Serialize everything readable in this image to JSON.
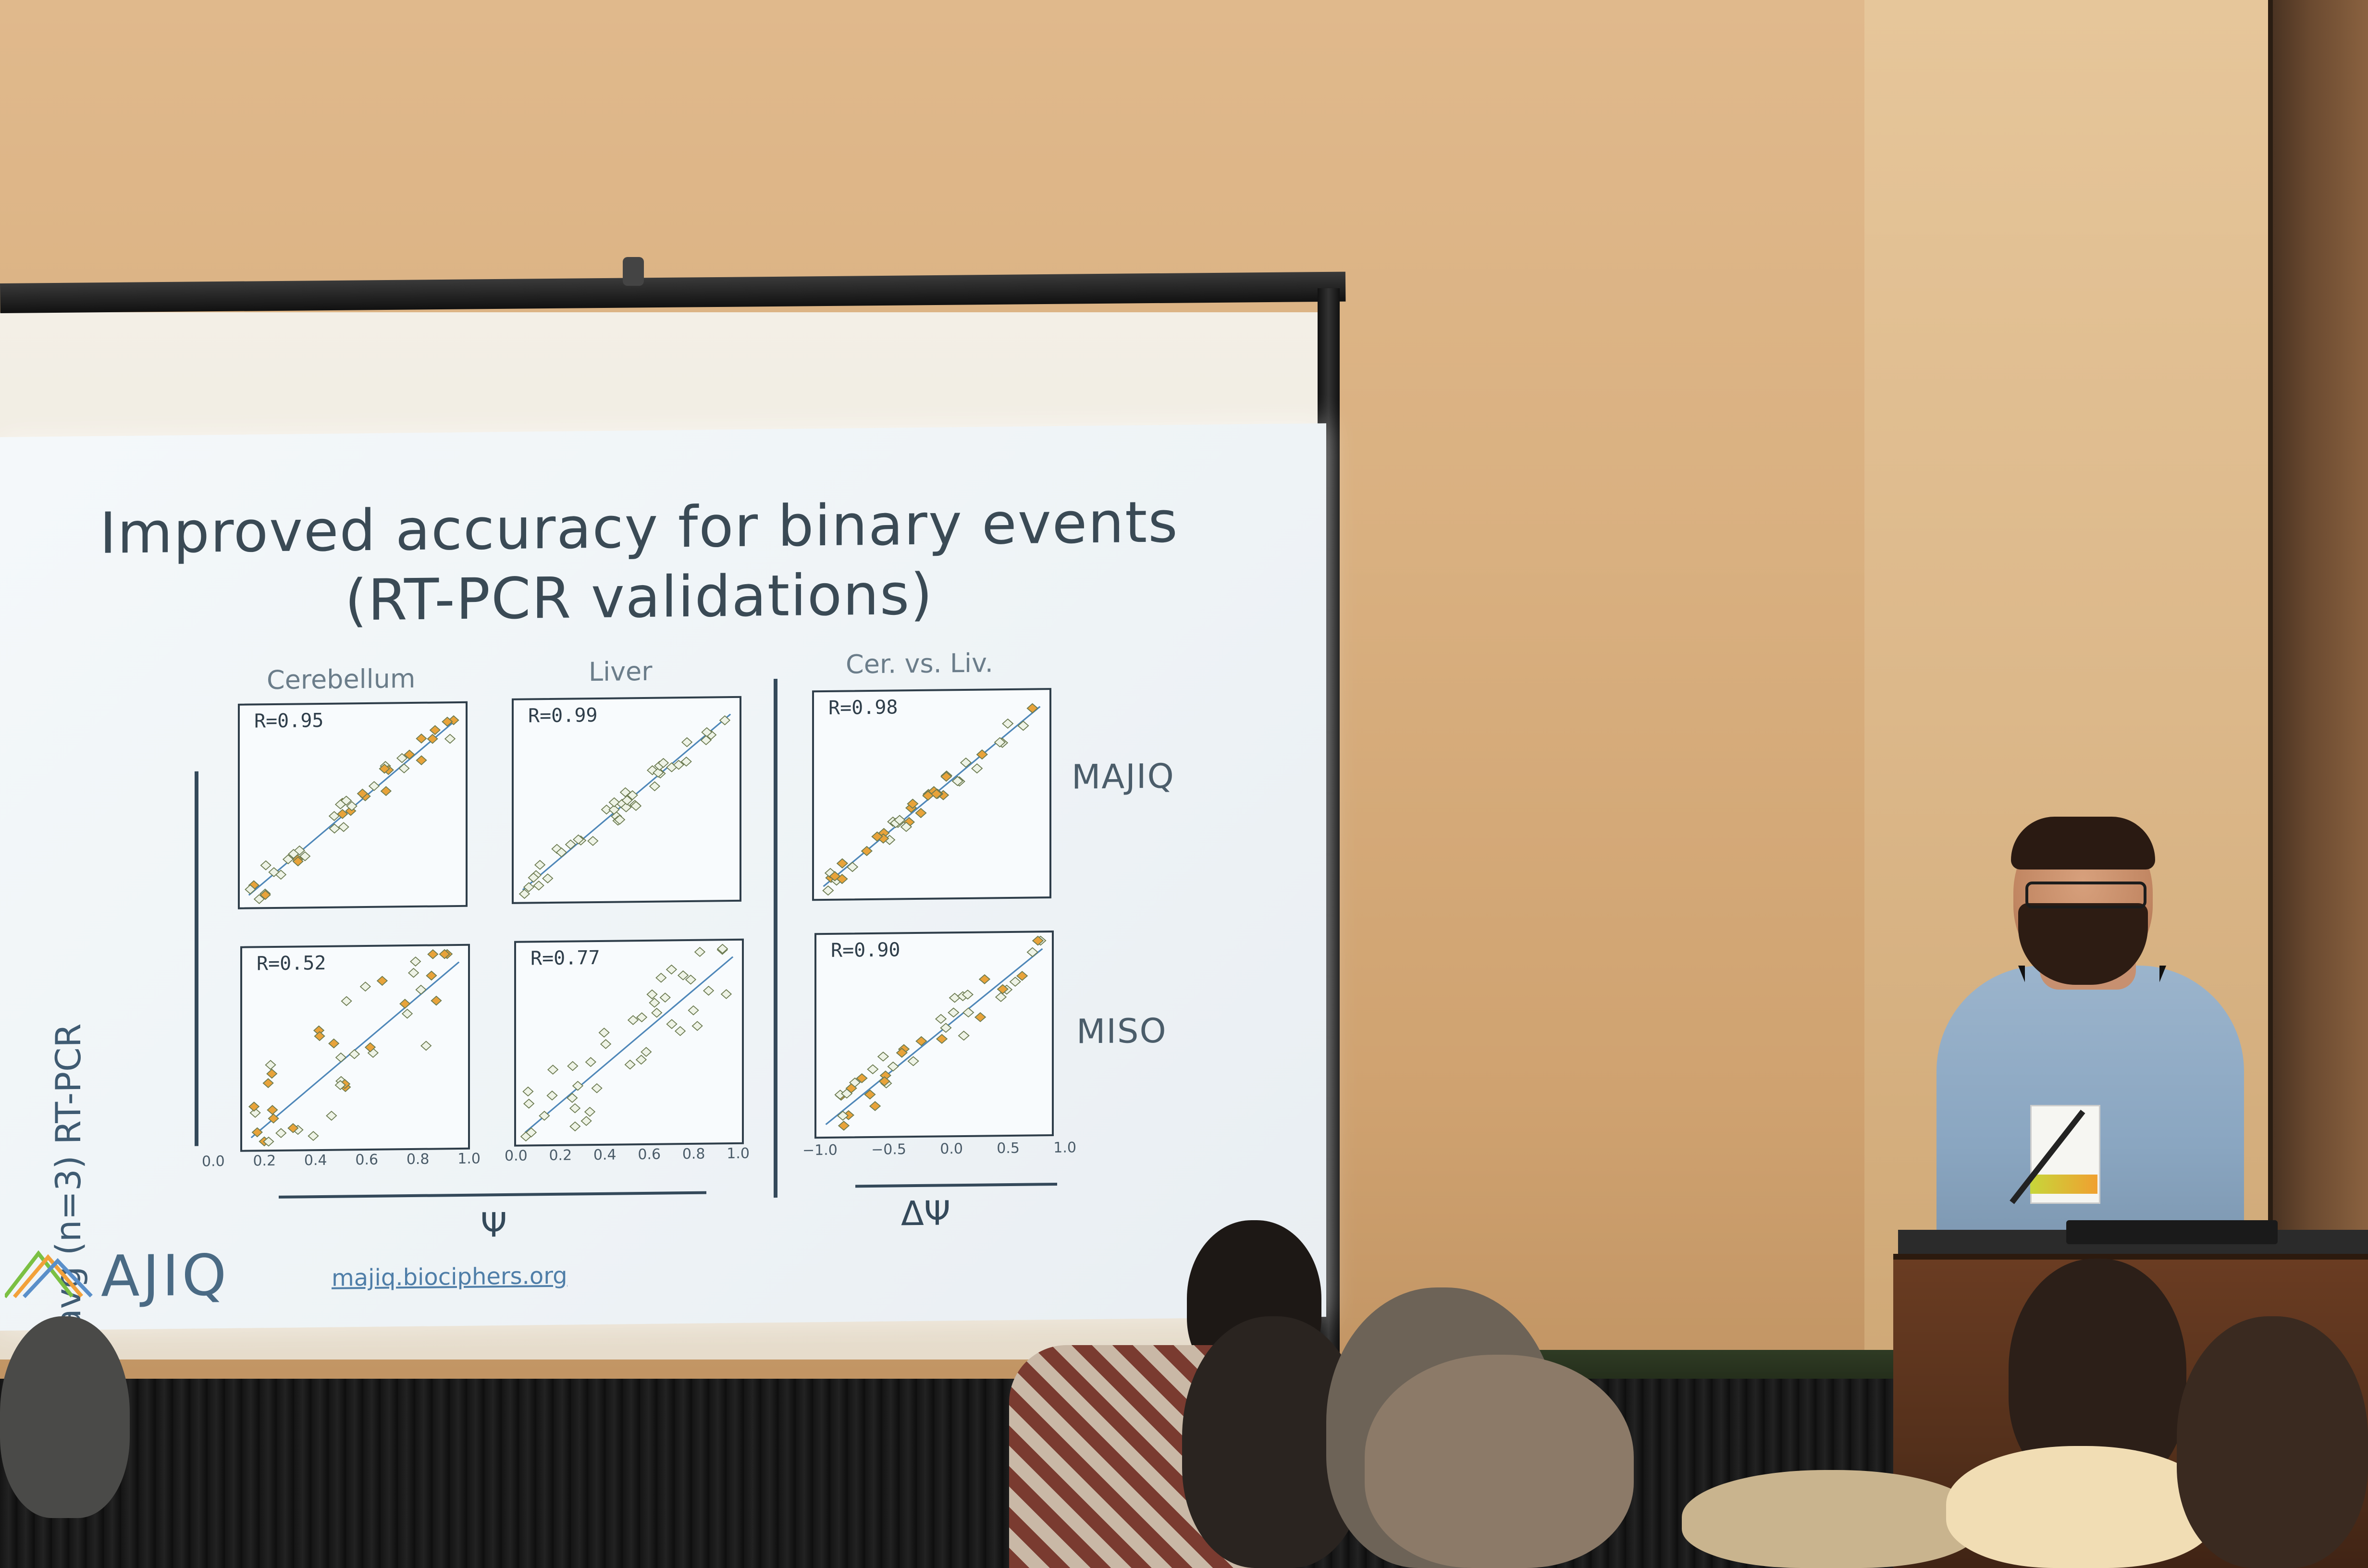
{
  "slide": {
    "title_line1": "Improved accuracy for binary events",
    "title_line2": "(RT-PCR validations)",
    "y_axis_label": "avg (n=3) RT-PCR",
    "columns": [
      "Cerebellum",
      "Liver",
      "Cer. vs. Liv."
    ],
    "rows": [
      "MAJIQ",
      "MISO"
    ],
    "x_symbol_left": "Ψ",
    "x_symbol_right": "ΔΨ",
    "ticks_psi": [
      "0.0",
      "0.2",
      "0.4",
      "0.6",
      "0.8",
      "1.0"
    ],
    "ticks_psi_short": [
      "0.0",
      "0.2",
      "0.4",
      "0.6",
      "0.8",
      "1.0"
    ],
    "ticks_dpsi": [
      "−1.0",
      "−0.5",
      "0.0",
      "0.5",
      "1.0"
    ],
    "logo_text": "AJIQ",
    "url": "majiq.biociphers.org"
  },
  "chart_data": [
    {
      "type": "scatter",
      "row": "MAJIQ",
      "column": "Cerebellum",
      "annotation": "R=0.95"
    },
    {
      "type": "scatter",
      "row": "MAJIQ",
      "column": "Liver",
      "annotation": "R=0.99"
    },
    {
      "type": "scatter",
      "row": "MAJIQ",
      "column": "Cer. vs. Liv.",
      "annotation": "R=0.98"
    },
    {
      "type": "scatter",
      "row": "MISO",
      "column": "Cerebellum",
      "annotation": "R=0.52"
    },
    {
      "type": "scatter",
      "row": "MISO",
      "column": "Liver",
      "annotation": "R=0.77"
    },
    {
      "type": "scatter",
      "row": "MISO",
      "column": "Cer. vs. Liv.",
      "annotation": "R=0.90"
    }
  ]
}
